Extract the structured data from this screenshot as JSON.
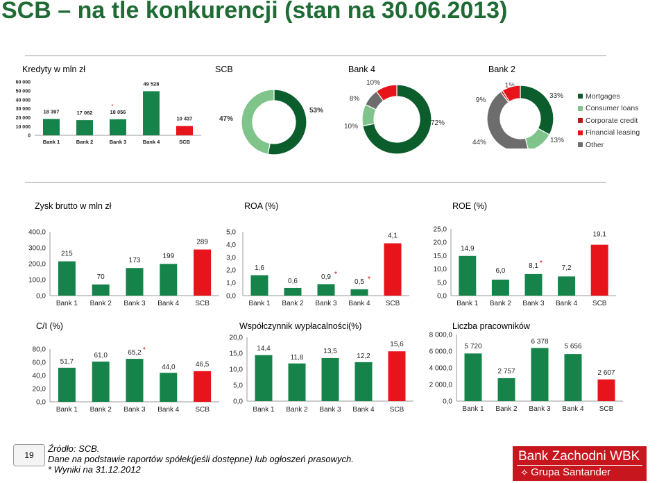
{
  "title": "SCB – na tle konkurencji (stan na 30.06.2013)",
  "colors": {
    "green": "#16844a",
    "red": "#e8141b",
    "brand_green": "#1f6b34"
  },
  "chart_data": [
    {
      "id": "kredyty",
      "type": "bar",
      "title": "Kredyty w mln zł",
      "categories": [
        "Bank 1",
        "Bank 2",
        "Bank 3",
        "Bank 4",
        "SCB"
      ],
      "values": [
        18397,
        17062,
        18056,
        49528,
        10437
      ],
      "value_labels": [
        "18 397",
        "17 062",
        "18 056",
        "49 528",
        "10 437"
      ],
      "ticks": [
        "60 000",
        "50 000",
        "40 000",
        "30 000",
        "20 000",
        "10 000",
        "0"
      ],
      "ylim": [
        0,
        60000
      ],
      "asterisk_on": [
        2
      ]
    },
    {
      "id": "scb_donut",
      "type": "pie",
      "title": "SCB",
      "slices": [
        {
          "label": "Mortgages",
          "value": 53,
          "text": "53%"
        },
        {
          "label": "Consumer loans",
          "value": 47,
          "text": "47%"
        }
      ]
    },
    {
      "id": "bank4_donut",
      "type": "pie",
      "title": "Bank 4",
      "slices": [
        {
          "label": "Mortgages",
          "value": 72,
          "text": "72%"
        },
        {
          "label": "Consumer loans",
          "value": 10,
          "text": "10%"
        },
        {
          "label": "Other",
          "value": 8,
          "text": "8%"
        },
        {
          "label": "Financial leasing",
          "value": 10,
          "text": "10%"
        }
      ]
    },
    {
      "id": "bank2_donut",
      "type": "pie",
      "title": "Bank 2",
      "slices": [
        {
          "label": "Mortgages",
          "value": 33,
          "text": "33%"
        },
        {
          "label": "Consumer loans",
          "value": 13,
          "text": "13%"
        },
        {
          "label": "Other",
          "value": 44,
          "text": "44%"
        },
        {
          "label": "Corporate credit",
          "value": 1,
          "text": "1%"
        },
        {
          "label": "Financial leasing",
          "value": 9,
          "text": "9%"
        }
      ],
      "legend": [
        "Mortgages",
        "Consumer loans",
        "Corporate credit",
        "Financial leasing",
        "Other"
      ],
      "legend_placement": "right"
    },
    {
      "id": "zysk",
      "type": "bar",
      "title": "Zysk brutto w mln zł",
      "categories": [
        "Bank 1",
        "Bank 2",
        "Bank 3",
        "Bank 4",
        "SCB"
      ],
      "values": [
        215,
        70,
        173,
        199,
        289
      ],
      "value_labels": [
        "215",
        "70",
        "173",
        "199",
        "289"
      ],
      "ticks": [
        "400,0",
        "300,0",
        "200,0",
        "100,0",
        "0,0"
      ],
      "ylim": [
        0,
        400
      ],
      "asterisk_on": []
    },
    {
      "id": "roa",
      "type": "bar",
      "title": "ROA (%)",
      "categories": [
        "Bank 1",
        "Bank 2",
        "Bank 3",
        "Bank 4",
        "SCB"
      ],
      "values": [
        1.6,
        0.6,
        0.9,
        0.5,
        4.1
      ],
      "value_labels": [
        "1,6",
        "0,6",
        "0,9",
        "0,5",
        "4,1"
      ],
      "ticks": [
        "5,0",
        "4,0",
        "3,0",
        "2,0",
        "1,0",
        "0,0"
      ],
      "ylim": [
        0,
        5
      ],
      "asterisk_on": [
        2,
        3
      ]
    },
    {
      "id": "roe",
      "type": "bar",
      "title": "ROE (%)",
      "categories": [
        "Bank 1",
        "Bank 2",
        "Bank 3",
        "Bank 4",
        "SCB"
      ],
      "values": [
        14.9,
        6.0,
        8.1,
        7.2,
        19.1
      ],
      "value_labels": [
        "14,9",
        "6,0",
        "8,1",
        "7,2",
        "19,1"
      ],
      "ticks": [
        "25,0",
        "20,0",
        "15,0",
        "10,0",
        "5,0",
        "0,0"
      ],
      "ylim": [
        0,
        25
      ],
      "asterisk_on": [
        2
      ]
    },
    {
      "id": "ci",
      "type": "bar",
      "title": "C/I (%)",
      "categories": [
        "Bank 1",
        "Bank 2",
        "Bank 3",
        "Bank 4",
        "SCB"
      ],
      "values": [
        51.7,
        61.0,
        65.2,
        44.0,
        46.5
      ],
      "value_labels": [
        "51,7",
        "61,0",
        "65,2",
        "44,0",
        "46,5"
      ],
      "ticks": [
        "80,0",
        "60,0",
        "40,0",
        "20,0",
        "0,0"
      ],
      "ylim": [
        0,
        80
      ],
      "asterisk_on": [
        2
      ]
    },
    {
      "id": "wyplacalnosc",
      "type": "bar",
      "title": "Współczynnik wypłacalności(%)",
      "categories": [
        "Bank 1",
        "Bank 2",
        "Bank 3",
        "Bank 4",
        "SCB"
      ],
      "values": [
        14.4,
        11.8,
        13.5,
        12.2,
        15.6
      ],
      "value_labels": [
        "14,4",
        "11,8",
        "13,5",
        "12,2",
        "15,6"
      ],
      "ticks": [
        "20,0",
        "15,0",
        "10,0",
        "5,0",
        "0,0"
      ],
      "ylim": [
        0,
        20
      ],
      "asterisk_on": []
    },
    {
      "id": "pracownicy",
      "type": "bar",
      "title": "Liczba pracowników",
      "categories": [
        "Bank 1",
        "Bank 2",
        "Bank 3",
        "Bank 4",
        "SCB"
      ],
      "values": [
        5720,
        2757,
        6378,
        5656,
        2607
      ],
      "value_labels": [
        "5 720",
        "2 757",
        "6 378",
        "5 656",
        "2 607"
      ],
      "ticks": [
        "8 000,0",
        "6 000,0",
        "4 000,0",
        "2 000,0",
        "0,0"
      ],
      "ylim": [
        0,
        8000
      ],
      "asterisk_on": []
    }
  ],
  "footer": {
    "page_number": "19",
    "source": "Źródło: SCB.",
    "note": "Dane na podstawie raportów spółek(jeśli dostępne) lub ogłoszeń prasowych.",
    "asterisk_note": "* Wyniki na 31.12.2012"
  },
  "logo": {
    "line1": "Bank Zachodni WBK",
    "line2": "Grupa Santander"
  }
}
